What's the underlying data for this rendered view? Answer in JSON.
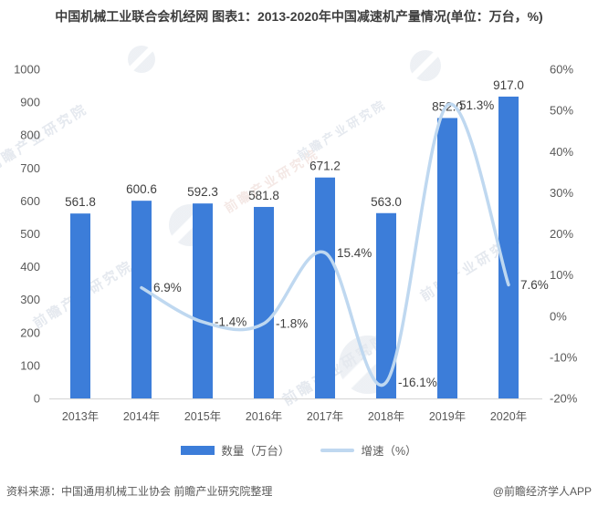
{
  "title": "中国机械工业联合会机经网 图表1：2013-2020年中国减速机产量情况(单位：万台，%)",
  "watermark": {
    "text": "前瞻产业研究院"
  },
  "footer": {
    "source": "资料来源：中国通用机械工业协会 前瞻产业研究院整理",
    "credit": "@前瞻经济学人APP"
  },
  "colors": {
    "bar": "#3c7dd9",
    "line": "#bfd8f0",
    "data_label": "#404040",
    "tick_label": "#595959",
    "axis_line": "#d9d9d9"
  },
  "chart_data": {
    "type": "bar",
    "subtype": "combo-bar-line",
    "title": "2013-2020年中国减速机产量情况(单位：万台，%)",
    "categories": [
      "2013年",
      "2014年",
      "2015年",
      "2016年",
      "2017年",
      "2018年",
      "2019年",
      "2020年"
    ],
    "series": [
      {
        "name": "数量（万台）",
        "type": "bar",
        "axis": "left",
        "values": [
          561.8,
          600.6,
          592.3,
          581.8,
          671.2,
          563.0,
          852.0,
          917.0
        ],
        "labels": [
          "561.8",
          "600.6",
          "592.3",
          "581.8",
          "671.2",
          "563.0",
          "852.0",
          "917.0"
        ]
      },
      {
        "name": "增速（%）",
        "type": "line",
        "axis": "right",
        "values": [
          null,
          6.9,
          -1.4,
          -1.8,
          15.4,
          -16.1,
          51.3,
          7.6
        ],
        "labels": [
          null,
          "6.9%",
          "-1.4%",
          "-1.8%",
          "15.4%",
          "-16.1%",
          "51.3%",
          "7.6%"
        ]
      }
    ],
    "left_axis": {
      "min": 0,
      "max": 1000,
      "step": 100,
      "suffix": ""
    },
    "right_axis": {
      "min": -20,
      "max": 60,
      "step": 10,
      "suffix": "%"
    },
    "grid": false,
    "legend_position": "bottom"
  }
}
